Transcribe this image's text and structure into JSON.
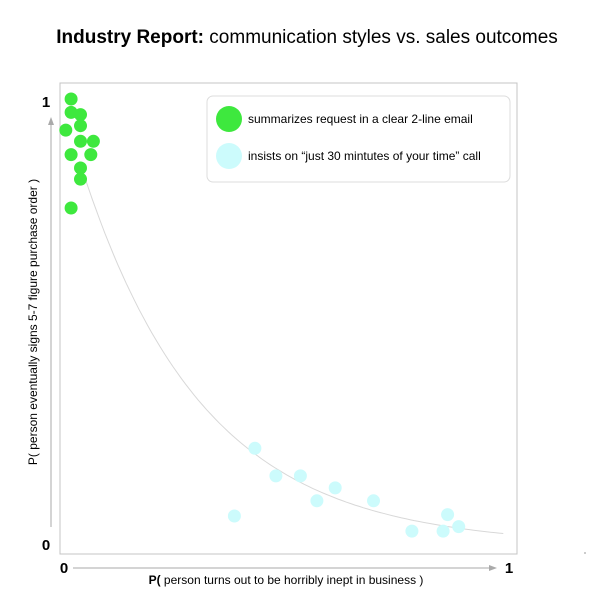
{
  "title": {
    "bold": "Industry Report:",
    "rest": " communication styles vs. sales outcomes"
  },
  "chart_data": {
    "type": "scatter",
    "title": "Industry Report: communication styles vs. sales outcomes",
    "xlabel_prefix": "P(",
    "xlabel_rest": " person turns out to be horribly inept in business )",
    "ylabel": "P( person eventually signs 5-7 figure purchase order )",
    "xlim": [
      0,
      1
    ],
    "ylim": [
      0,
      1
    ],
    "x_ticks": [
      "0",
      "1"
    ],
    "y_ticks": [
      "0",
      "1"
    ],
    "grid": false,
    "legend_position": "top-right",
    "series": [
      {
        "name": "summarizes request in a clear 2-line email",
        "color": "#3ee83e",
        "points": [
          [
            0.016,
            1.0
          ],
          [
            0.016,
            0.97
          ],
          [
            0.037,
            0.965
          ],
          [
            0.037,
            0.94
          ],
          [
            0.004,
            0.93
          ],
          [
            0.037,
            0.905
          ],
          [
            0.066,
            0.905
          ],
          [
            0.016,
            0.875
          ],
          [
            0.06,
            0.875
          ],
          [
            0.037,
            0.845
          ],
          [
            0.037,
            0.82
          ],
          [
            0.016,
            0.755
          ]
        ]
      },
      {
        "name": "insists on “just 30 mintutes of your time” call",
        "color": "#ccfbfc",
        "points": [
          [
            0.428,
            0.215
          ],
          [
            0.475,
            0.153
          ],
          [
            0.53,
            0.153
          ],
          [
            0.608,
            0.126
          ],
          [
            0.567,
            0.097
          ],
          [
            0.694,
            0.097
          ],
          [
            0.382,
            0.063
          ],
          [
            0.78,
            0.029
          ],
          [
            0.85,
            0.029
          ],
          [
            0.86,
            0.066
          ],
          [
            0.885,
            0.039
          ]
        ]
      }
    ],
    "trend_curve": {
      "color": "#d8d8d8"
    }
  }
}
